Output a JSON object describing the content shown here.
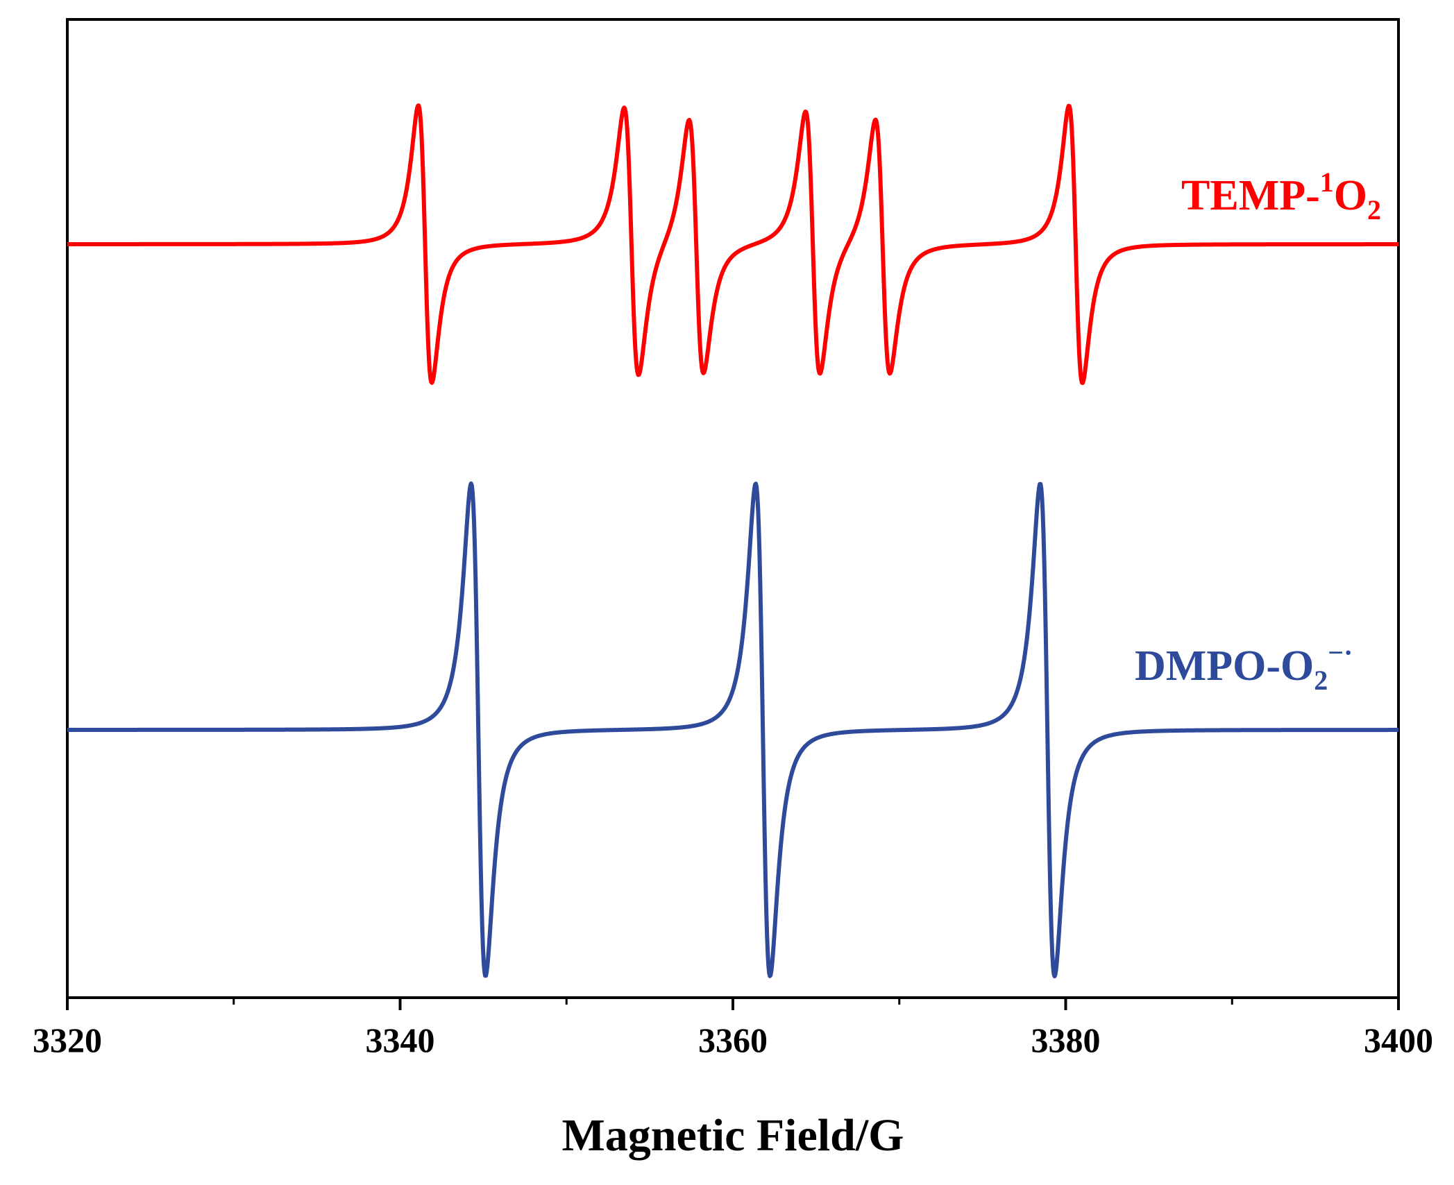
{
  "chart_data": {
    "type": "line",
    "title": "",
    "xlabel": "Magnetic Field/G",
    "ylabel": "",
    "xlim": [
      3320,
      3400
    ],
    "xticks": [
      3320,
      3340,
      3360,
      3380,
      3400
    ],
    "xtick_labels": [
      "3320",
      "3340",
      "3360",
      "3380",
      "3400"
    ],
    "minor_xticks": [
      3330,
      3350,
      3370,
      3390
    ],
    "yticks_shown": false,
    "grid": false,
    "series": [
      {
        "name": "TEMP-1O2",
        "label_main": "TEMP-",
        "label_sup": "1",
        "label_mid": "O",
        "label_sub": "2",
        "color": "#ff0000",
        "position": "upper",
        "lines": [
          {
            "center": 3341.5,
            "halfwidth": 0.7,
            "amplitude": 1.0
          },
          {
            "center": 3353.9,
            "halfwidth": 0.75,
            "amplitude": 0.97
          },
          {
            "center": 3357.8,
            "halfwidth": 0.75,
            "amplitude": 0.92
          },
          {
            "center": 3364.8,
            "halfwidth": 0.75,
            "amplitude": 0.95
          },
          {
            "center": 3369.0,
            "halfwidth": 0.75,
            "amplitude": 0.92
          },
          {
            "center": 3380.6,
            "halfwidth": 0.7,
            "amplitude": 1.0
          }
        ]
      },
      {
        "name": "DMPO-O2−·",
        "label_main": "DMPO-O",
        "label_sub": "2",
        "label_sup": "−·",
        "color": "#2e4a9a",
        "position": "lower",
        "lines": [
          {
            "center": 3344.7,
            "halfwidth": 0.75,
            "amplitude": 1.0
          },
          {
            "center": 3361.8,
            "halfwidth": 0.75,
            "amplitude": 1.0
          },
          {
            "center": 3378.9,
            "halfwidth": 0.75,
            "amplitude": 1.0
          }
        ]
      }
    ]
  }
}
